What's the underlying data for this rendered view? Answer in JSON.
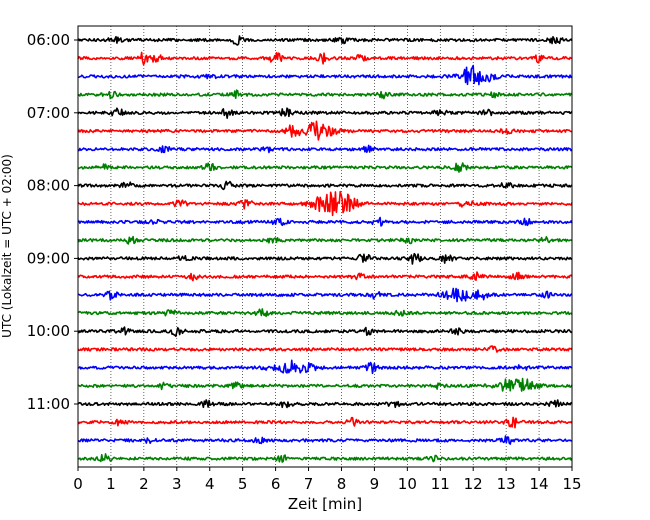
{
  "chart_data": {
    "type": "line",
    "title": "",
    "xlabel": "Zeit  [min]",
    "ylabel": "UTC (Lokalzeit = UTC + 02:00)",
    "xlim": [
      0,
      15
    ],
    "x_ticks": [
      "0",
      "1",
      "2",
      "3",
      "4",
      "5",
      "6",
      "7",
      "8",
      "9",
      "10",
      "11",
      "12",
      "13",
      "14",
      "15"
    ],
    "grid": "vertical dotted",
    "y_ticks": [
      {
        "label": "06:00",
        "trace": 0
      },
      {
        "label": "07:00",
        "trace": 4
      },
      {
        "label": "08:00",
        "trace": 8
      },
      {
        "label": "09:00",
        "trace": 12
      },
      {
        "label": "10:00",
        "trace": 16
      },
      {
        "label": "11:00",
        "trace": 20
      }
    ],
    "trace_minutes": 15,
    "trace_colors": [
      "#000000",
      "#ff0000",
      "#0000ff",
      "#008000"
    ],
    "traces": [
      {
        "start": "06:00",
        "events": [
          [
            1.1,
            0.6
          ],
          [
            4.8,
            0.7
          ],
          [
            8,
            0.5
          ],
          [
            14.5,
            0.6
          ]
        ]
      },
      {
        "start": "06:15",
        "events": [
          [
            2,
            1.0
          ],
          [
            2.4,
            0.7
          ],
          [
            6,
            1.0
          ],
          [
            7.4,
            0.9
          ],
          [
            8.6,
            0.6
          ],
          [
            14,
            0.6
          ]
        ]
      },
      {
        "start": "06:30",
        "events": [
          [
            4,
            0.4
          ],
          [
            12.1,
            1.4
          ],
          [
            11.9,
            0.8
          ]
        ]
      },
      {
        "start": "06:45",
        "events": [
          [
            1,
            0.5
          ],
          [
            4.8,
            0.6
          ],
          [
            9.3,
            0.5
          ],
          [
            12.6,
            0.4
          ]
        ]
      },
      {
        "start": "07:00",
        "events": [
          [
            1.2,
            0.7
          ],
          [
            4.5,
            0.9
          ],
          [
            6.3,
            0.7
          ],
          [
            11,
            0.6
          ],
          [
            12.4,
            0.5
          ]
        ]
      },
      {
        "start": "07:15",
        "events": [
          [
            6.5,
            0.9
          ],
          [
            7.3,
            1.6
          ],
          [
            13,
            0.5
          ]
        ]
      },
      {
        "start": "07:30",
        "events": [
          [
            2.6,
            0.5
          ],
          [
            5.8,
            0.6
          ],
          [
            8.8,
            0.5
          ]
        ]
      },
      {
        "start": "07:45",
        "events": [
          [
            0.8,
            0.4
          ],
          [
            4,
            0.6
          ],
          [
            11.6,
            0.8
          ]
        ]
      },
      {
        "start": "08:00",
        "events": [
          [
            4.5,
            0.9
          ],
          [
            1.5,
            0.5
          ],
          [
            13,
            0.5
          ]
        ]
      },
      {
        "start": "08:15",
        "events": [
          [
            3.1,
            0.6
          ],
          [
            5.1,
            0.8
          ],
          [
            7.6,
            1.3
          ],
          [
            8,
            1.4
          ],
          [
            11.8,
            0.8
          ]
        ]
      },
      {
        "start": "08:30",
        "events": [
          [
            2.3,
            0.4
          ],
          [
            6.1,
            0.5
          ],
          [
            9.1,
            0.7
          ],
          [
            13.6,
            0.5
          ]
        ]
      },
      {
        "start": "08:45",
        "events": [
          [
            1.6,
            0.5
          ],
          [
            5.9,
            0.5
          ],
          [
            10,
            0.6
          ],
          [
            14.2,
            0.5
          ]
        ]
      },
      {
        "start": "09:00",
        "events": [
          [
            8.7,
            0.9
          ],
          [
            10.2,
            1.0
          ],
          [
            11.2,
            0.7
          ],
          [
            3.2,
            0.5
          ]
        ]
      },
      {
        "start": "09:15",
        "events": [
          [
            3.5,
            0.5
          ],
          [
            8.5,
            0.6
          ],
          [
            12.1,
            0.6
          ],
          [
            13.3,
            0.7
          ]
        ]
      },
      {
        "start": "09:30",
        "events": [
          [
            1,
            0.7
          ],
          [
            9,
            0.6
          ],
          [
            11.6,
            1.1
          ],
          [
            12.3,
            0.8
          ],
          [
            14.2,
            0.4
          ]
        ]
      },
      {
        "start": "09:45",
        "events": [
          [
            2.8,
            0.5
          ],
          [
            5.6,
            0.6
          ],
          [
            9.8,
            0.4
          ]
        ]
      },
      {
        "start": "10:00",
        "events": [
          [
            3,
            0.9
          ],
          [
            1.4,
            0.5
          ],
          [
            8.8,
            0.5
          ],
          [
            11.5,
            0.5
          ]
        ]
      },
      {
        "start": "10:15",
        "events": [
          [
            12.6,
            0.4
          ]
        ]
      },
      {
        "start": "10:30",
        "events": [
          [
            6.6,
            1.2
          ],
          [
            8.9,
            1.0
          ],
          [
            5.8,
            0.5
          ],
          [
            13.5,
            0.4
          ]
        ]
      },
      {
        "start": "10:45",
        "events": [
          [
            2.6,
            0.5
          ],
          [
            4.8,
            0.5
          ],
          [
            13.3,
            1.6
          ],
          [
            11,
            0.5
          ]
        ]
      },
      {
        "start": "11:00",
        "events": [
          [
            3.9,
            0.5
          ],
          [
            6.3,
            0.6
          ],
          [
            9.6,
            0.4
          ],
          [
            14.5,
            0.6
          ]
        ]
      },
      {
        "start": "11:15",
        "events": [
          [
            8.3,
            0.6
          ],
          [
            13.2,
            0.9
          ],
          [
            1.3,
            0.5
          ]
        ]
      },
      {
        "start": "11:30",
        "events": [
          [
            5.5,
            0.5
          ],
          [
            13,
            0.8
          ],
          [
            2.2,
            0.4
          ]
        ]
      },
      {
        "start": "11:45",
        "events": [
          [
            0.8,
            0.9
          ],
          [
            6.2,
            0.5
          ],
          [
            10.8,
            0.5
          ]
        ]
      }
    ]
  }
}
